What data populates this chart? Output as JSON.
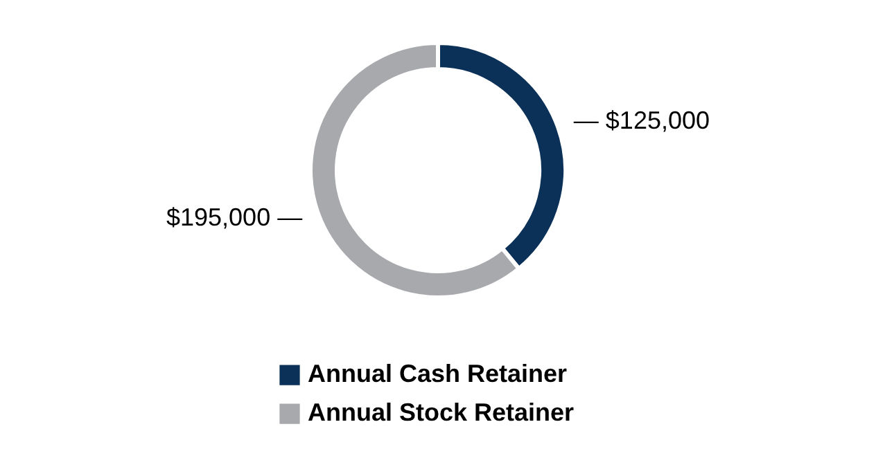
{
  "chart_data": {
    "type": "donut",
    "categories": [
      "Annual Cash Retainer",
      "Annual Stock Retainer"
    ],
    "values": [
      125000,
      195000
    ],
    "colors": [
      "#0b3158",
      "#a7a9ac"
    ],
    "value_labels": [
      "— $125,000",
      "$195,000 —"
    ],
    "legend": "bottom"
  }
}
